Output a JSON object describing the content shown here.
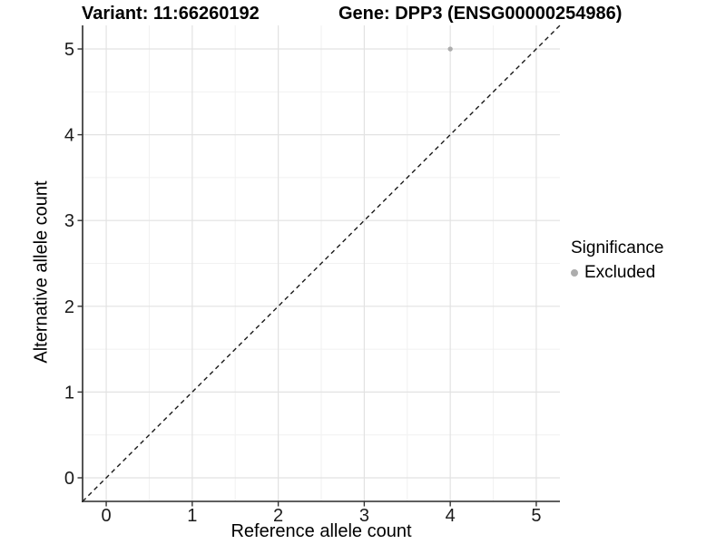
{
  "chart_data": {
    "type": "scatter",
    "title_left": "Variant: 11:66260192",
    "title_right": "Gene: DPP3 (ENSG00000254986)",
    "xlabel": "Reference allele count",
    "ylabel": "Alternative allele count",
    "xlim": [
      -0.275,
      5.275
    ],
    "ylim": [
      -0.275,
      5.275
    ],
    "x_ticks": [
      0,
      1,
      2,
      3,
      4,
      5
    ],
    "y_ticks": [
      0,
      1,
      2,
      3,
      4,
      5
    ],
    "x_minor_gridlines": [
      0.5,
      1.5,
      2.5,
      3.5,
      4.5
    ],
    "y_minor_gridlines": [
      0.5,
      1.5,
      2.5,
      3.5,
      4.5
    ],
    "grid": "major and minor gridlines on white panel",
    "points": [
      {
        "x": 4,
        "y": 5,
        "series": "Excluded"
      }
    ],
    "reference_line": {
      "equation": "y = x",
      "style": "dashed",
      "extent": "panel corner to corner"
    },
    "legend": {
      "title": "Significance",
      "position": "right",
      "entries": [
        {
          "label": "Excluded",
          "marker": "circle",
          "color": "#adadad"
        }
      ]
    }
  },
  "colors": {
    "background": "#ffffff",
    "grid_major": "#e2e2e2",
    "grid_minor": "#f1f1f1",
    "axis_line": "#2a2a2a",
    "tick_mark": "#333333",
    "tick_label": "#1a1a1a",
    "identity_line": "#1a1a1a",
    "point": "#adadad",
    "text": "#000000"
  }
}
